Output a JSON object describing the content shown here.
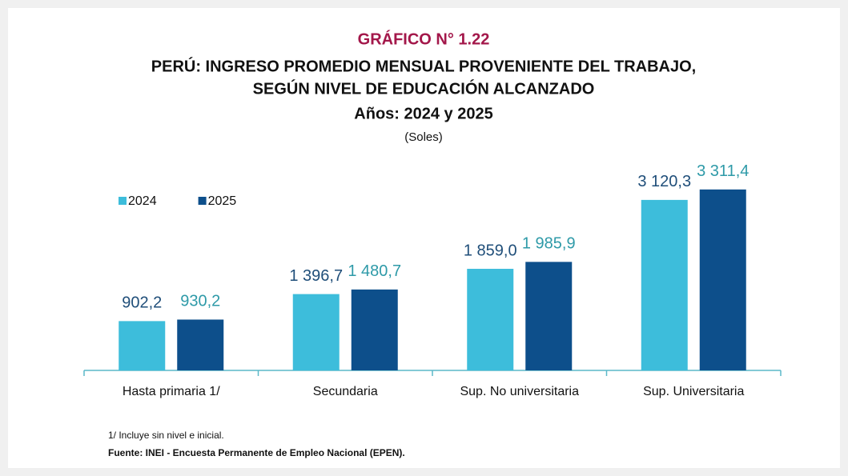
{
  "chart_data": {
    "type": "bar",
    "label": "GRÁFICO N° 1.22",
    "title": [
      "PERÚ: INGRESO PROMEDIO MENSUAL PROVENIENTE DEL TRABAJO,",
      "SEGÚN NIVEL DE EDUCACIÓN ALCANZADO"
    ],
    "subtitle": "Años: 2024 y 2025",
    "unit": "(Soles)",
    "categories": [
      "Hasta primaria 1/",
      "Secundaria",
      "Sup. No universitaria",
      "Sup. Universitaria"
    ],
    "series": [
      {
        "name": "2024",
        "color": "#3dbddb",
        "label_color": "#1f4e79",
        "values": [
          902.2,
          1396.7,
          1859.0,
          3120.3
        ],
        "value_labels": [
          "902,2",
          "1 396,7",
          "1 859,0",
          "3 120,3"
        ]
      },
      {
        "name": "2025",
        "color": "#0d4f8b",
        "label_color": "#2e9aa8",
        "values": [
          930.2,
          1480.7,
          1985.9,
          3311.4
        ],
        "value_labels": [
          "930,2",
          "1 480,7",
          "1 985,9",
          "3 311,4"
        ]
      }
    ],
    "legend": "top-left",
    "notes": [
      "1/ Incluye sin nivel e inicial.",
      "Fuente: INEI - Encuesta Permanente de Empleo Nacional (EPEN)."
    ]
  }
}
